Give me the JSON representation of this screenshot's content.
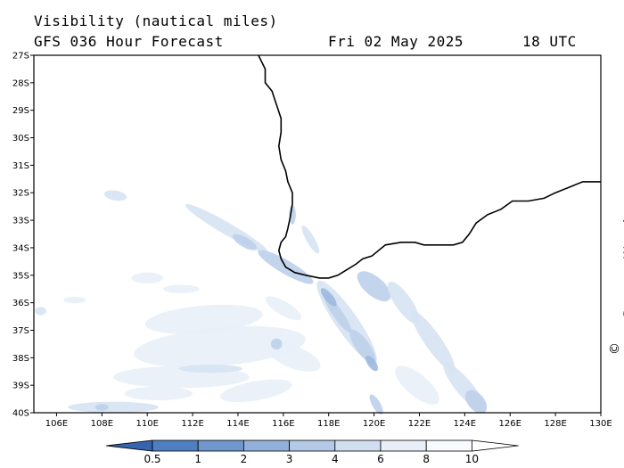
{
  "header": {
    "variable": "Visibility (nautical miles)",
    "model": "GFS 036 Hour Forecast",
    "date": "Fri 02 May 2025",
    "time": "18 UTC"
  },
  "credit": "© www.PassageWeather.com",
  "map": {
    "lat_labels": [
      "27S",
      "28S",
      "29S",
      "30S",
      "31S",
      "32S",
      "33S",
      "34S",
      "35S",
      "36S",
      "37S",
      "38S",
      "39S",
      "40S"
    ],
    "lat_values": [
      -27,
      -28,
      -29,
      -30,
      -31,
      -32,
      -33,
      -34,
      -35,
      -36,
      -37,
      -38,
      -39,
      -40
    ],
    "lon_labels": [
      "106E",
      "108E",
      "110E",
      "112E",
      "114E",
      "116E",
      "118E",
      "120E",
      "122E",
      "124E",
      "126E",
      "128E",
      "130E"
    ],
    "lon_values": [
      106,
      108,
      110,
      112,
      114,
      116,
      118,
      120,
      122,
      124,
      126,
      128,
      130
    ],
    "lon_range": [
      105,
      130
    ],
    "lat_range": [
      -40,
      -27
    ],
    "coastline": [
      [
        114.9,
        -27.0
      ],
      [
        115.2,
        -27.5
      ],
      [
        115.2,
        -28.0
      ],
      [
        115.5,
        -28.3
      ],
      [
        115.7,
        -28.8
      ],
      [
        115.9,
        -29.3
      ],
      [
        115.9,
        -29.8
      ],
      [
        115.8,
        -30.3
      ],
      [
        115.9,
        -30.8
      ],
      [
        116.1,
        -31.2
      ],
      [
        116.2,
        -31.6
      ],
      [
        116.4,
        -32.0
      ],
      [
        116.4,
        -32.4
      ],
      [
        116.3,
        -32.9
      ],
      [
        116.2,
        -33.3
      ],
      [
        116.1,
        -33.6
      ],
      [
        115.9,
        -33.8
      ],
      [
        115.8,
        -34.1
      ],
      [
        115.9,
        -34.4
      ],
      [
        116.1,
        -34.7
      ],
      [
        116.5,
        -34.9
      ],
      [
        117.0,
        -35.0
      ],
      [
        117.6,
        -35.1
      ],
      [
        118.0,
        -35.1
      ],
      [
        118.4,
        -35.0
      ],
      [
        118.8,
        -34.8
      ],
      [
        119.2,
        -34.6
      ],
      [
        119.5,
        -34.4
      ],
      [
        119.9,
        -34.3
      ],
      [
        120.5,
        -33.9
      ],
      [
        121.2,
        -33.8
      ],
      [
        121.8,
        -33.8
      ],
      [
        122.2,
        -33.9
      ],
      [
        122.5,
        -33.9
      ],
      [
        123.0,
        -33.9
      ],
      [
        123.5,
        -33.9
      ],
      [
        123.9,
        -33.8
      ],
      [
        124.2,
        -33.5
      ],
      [
        124.5,
        -33.1
      ],
      [
        125.0,
        -32.8
      ],
      [
        125.6,
        -32.6
      ],
      [
        126.1,
        -32.3
      ],
      [
        126.8,
        -32.3
      ],
      [
        127.5,
        -32.2
      ],
      [
        128.0,
        -32.0
      ],
      [
        128.6,
        -31.8
      ],
      [
        129.2,
        -31.6
      ],
      [
        130.0,
        -31.6
      ]
    ],
    "visibility_patches": [
      {
        "lon": 108.6,
        "lat": -32.1,
        "rx": 0.5,
        "ry": 0.18,
        "rot": 10,
        "level": 2
      },
      {
        "lon": 113.5,
        "lat": -33.3,
        "rx": 2.1,
        "ry": 0.22,
        "rot": 30,
        "level": 2
      },
      {
        "lon": 114.3,
        "lat": -33.8,
        "rx": 0.6,
        "ry": 0.18,
        "rot": 30,
        "level": 3
      },
      {
        "lon": 116.1,
        "lat": -34.7,
        "rx": 1.4,
        "ry": 0.25,
        "rot": 30,
        "level": 3
      },
      {
        "lon": 116.4,
        "lat": -32.8,
        "rx": 0.15,
        "ry": 0.35,
        "rot": 0,
        "level": 3
      },
      {
        "lon": 117.2,
        "lat": -33.7,
        "rx": 0.7,
        "ry": 0.15,
        "rot": 60,
        "level": 2
      },
      {
        "lon": 120.0,
        "lat": -35.4,
        "rx": 0.9,
        "ry": 0.35,
        "rot": 40,
        "level": 3
      },
      {
        "lon": 121.3,
        "lat": -36.0,
        "rx": 1.1,
        "ry": 0.3,
        "rot": 55,
        "level": 2
      },
      {
        "lon": 122.6,
        "lat": -37.4,
        "rx": 1.6,
        "ry": 0.3,
        "rot": 55,
        "level": 2
      },
      {
        "lon": 124.0,
        "lat": -39.1,
        "rx": 1.4,
        "ry": 0.3,
        "rot": 50,
        "level": 2
      },
      {
        "lon": 118.8,
        "lat": -36.7,
        "rx": 2.2,
        "ry": 0.4,
        "rot": 55,
        "level": 2
      },
      {
        "lon": 118.4,
        "lat": -36.4,
        "rx": 1.0,
        "ry": 0.18,
        "rot": 55,
        "level": 3
      },
      {
        "lon": 119.5,
        "lat": -37.6,
        "rx": 0.9,
        "ry": 0.25,
        "rot": 55,
        "level": 3
      },
      {
        "lon": 118.0,
        "lat": -35.8,
        "rx": 0.5,
        "ry": 0.15,
        "rot": 50,
        "level": 4
      },
      {
        "lon": 119.9,
        "lat": -38.2,
        "rx": 0.4,
        "ry": 0.15,
        "rot": 55,
        "level": 4
      },
      {
        "lon": 120.1,
        "lat": -39.7,
        "rx": 0.5,
        "ry": 0.15,
        "rot": 60,
        "level": 3
      },
      {
        "lon": 112.5,
        "lat": -36.6,
        "rx": 2.6,
        "ry": 0.5,
        "rot": -5,
        "level": 1
      },
      {
        "lon": 113.2,
        "lat": -37.6,
        "rx": 3.8,
        "ry": 0.7,
        "rot": -5,
        "level": 1
      },
      {
        "lon": 111.5,
        "lat": -38.7,
        "rx": 3.0,
        "ry": 0.4,
        "rot": 0,
        "level": 1
      },
      {
        "lon": 112.8,
        "lat": -38.4,
        "rx": 1.4,
        "ry": 0.15,
        "rot": 0,
        "level": 2
      },
      {
        "lon": 110.5,
        "lat": -39.3,
        "rx": 1.5,
        "ry": 0.25,
        "rot": 0,
        "level": 1
      },
      {
        "lon": 108.5,
        "lat": -39.8,
        "rx": 2.0,
        "ry": 0.2,
        "rot": 0,
        "level": 2
      },
      {
        "lon": 108.0,
        "lat": -39.8,
        "rx": 0.3,
        "ry": 0.12,
        "rot": 0,
        "level": 3
      },
      {
        "lon": 114.8,
        "lat": -39.2,
        "rx": 1.6,
        "ry": 0.35,
        "rot": -10,
        "level": 1
      },
      {
        "lon": 116.5,
        "lat": -38.0,
        "rx": 1.2,
        "ry": 0.4,
        "rot": 20,
        "level": 1
      },
      {
        "lon": 115.7,
        "lat": -37.5,
        "rx": 0.25,
        "ry": 0.2,
        "rot": 0,
        "level": 3
      },
      {
        "lon": 116.0,
        "lat": -36.2,
        "rx": 0.9,
        "ry": 0.25,
        "rot": 30,
        "level": 1
      },
      {
        "lon": 105.3,
        "lat": -36.3,
        "rx": 0.25,
        "ry": 0.15,
        "rot": 0,
        "level": 2
      },
      {
        "lon": 106.8,
        "lat": -35.9,
        "rx": 0.5,
        "ry": 0.12,
        "rot": 0,
        "level": 1
      },
      {
        "lon": 110.0,
        "lat": -35.1,
        "rx": 0.7,
        "ry": 0.2,
        "rot": 0,
        "level": 1
      },
      {
        "lon": 111.5,
        "lat": -35.5,
        "rx": 0.8,
        "ry": 0.15,
        "rot": 0,
        "level": 1
      },
      {
        "lon": 121.9,
        "lat": -39.0,
        "rx": 1.2,
        "ry": 0.4,
        "rot": 40,
        "level": 1
      },
      {
        "lon": 124.5,
        "lat": -39.6,
        "rx": 0.6,
        "ry": 0.3,
        "rot": 50,
        "level": 3
      }
    ]
  },
  "colorbar": {
    "labels": [
      "0.5",
      "1",
      "2",
      "3",
      "4",
      "6",
      "8",
      "10"
    ],
    "colors": [
      "#3565ad",
      "#4d7fc1",
      "#6f97cd",
      "#92b1da",
      "#b3c9e6",
      "#d0def0",
      "#e9eff8",
      "#f8fafd",
      "#ffffff"
    ]
  }
}
